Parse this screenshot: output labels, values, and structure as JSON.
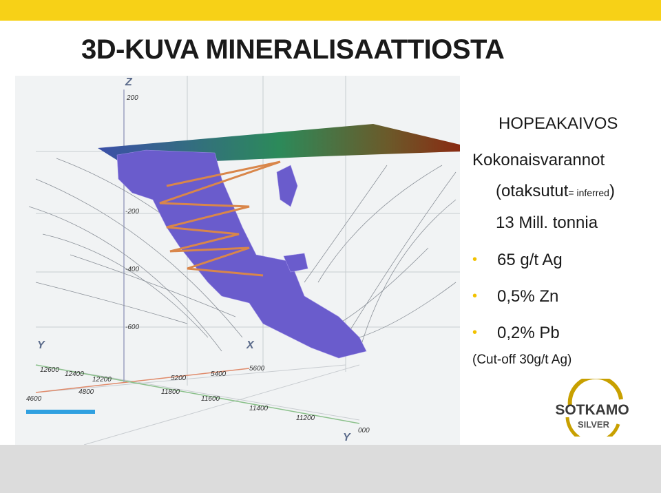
{
  "header": {
    "title": "3D-KUVA MINERALISAATTIOSTA"
  },
  "panel": {
    "heading": "HOPEAKAIVOS",
    "subheading": "Kokonaisvarannot",
    "note_open": "(otaksutut",
    "note_small": "= inferred",
    "note_close": ")",
    "tonnage": "13 Mill. tonnia",
    "bullets": [
      "65 g/t Ag",
      "0,5% Zn",
      "0,2% Pb"
    ],
    "cutoff": "(Cut-off 30g/t Ag)"
  },
  "logo": {
    "name": "SOTKAMO",
    "sub": "SILVER"
  },
  "image": {
    "axis_labels": [
      "Z",
      "200",
      "-200",
      "-400",
      "-600",
      "Y",
      "X",
      "12600",
      "12400",
      "12200",
      "5200",
      "5400",
      "5600",
      "4800",
      "4600",
      "11800",
      "11600",
      "11400",
      "11200",
      "Y",
      "000"
    ]
  }
}
